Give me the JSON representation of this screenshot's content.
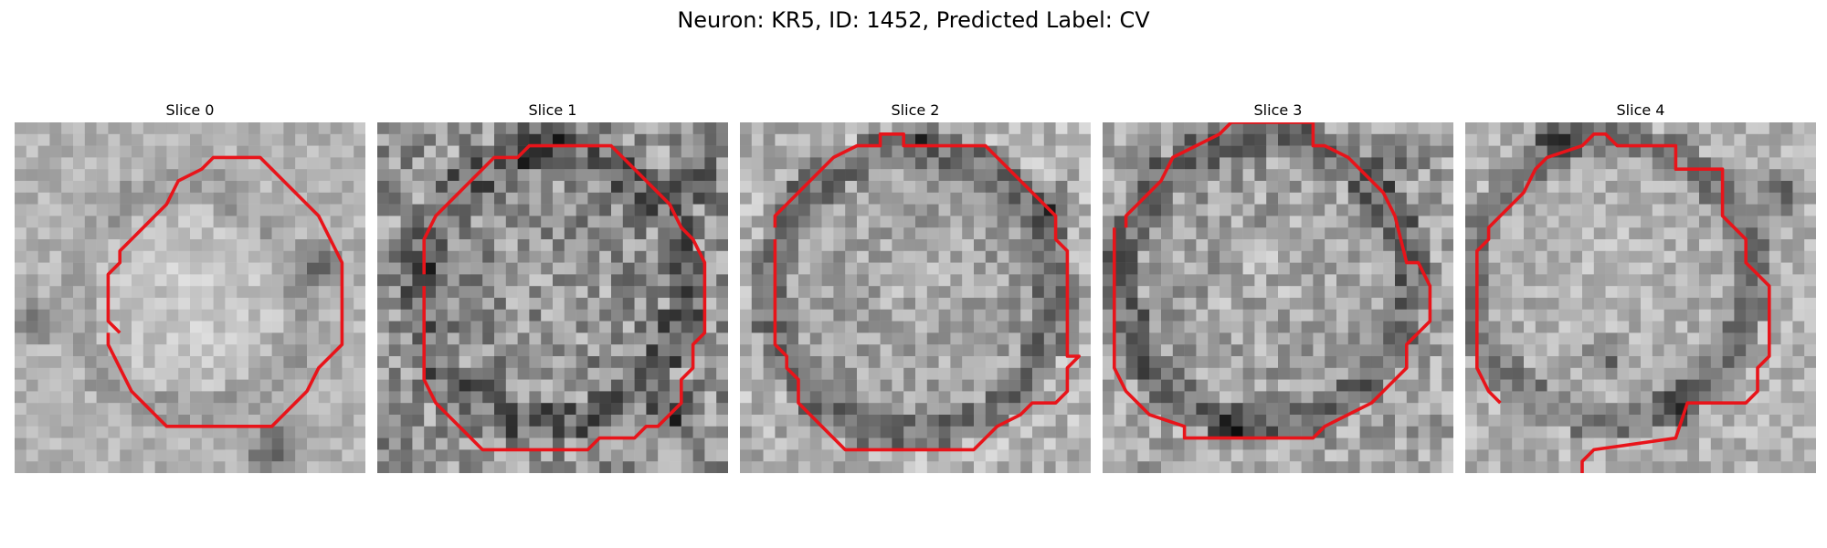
{
  "figure": {
    "title": "Neuron: KR5, ID: 1452, Predicted Label: CV"
  },
  "contour_color": "#e8141a",
  "panels": [
    {
      "title": "Slice 0"
    },
    {
      "title": "Slice 1"
    },
    {
      "title": "Slice 2"
    },
    {
      "title": "Slice 3"
    },
    {
      "title": "Slice 4"
    }
  ]
}
